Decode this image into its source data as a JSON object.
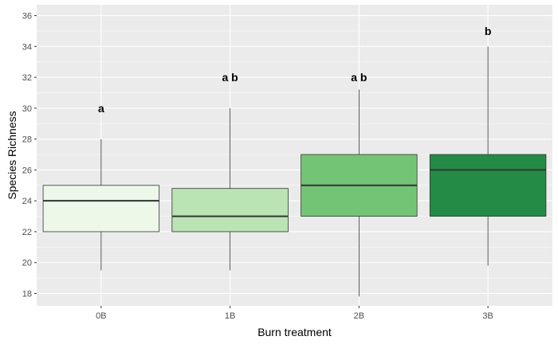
{
  "chart_data": {
    "type": "boxplot",
    "xlabel": "Burn treatment",
    "ylabel": "Species Richness",
    "categories": [
      "0B",
      "1B",
      "2B",
      "3B"
    ],
    "ylim": [
      17.2,
      36.7
    ],
    "yticks": [
      18,
      20,
      22,
      24,
      26,
      28,
      30,
      32,
      34,
      36
    ],
    "grid": true,
    "legend": "none",
    "boxes": [
      {
        "category": "0B",
        "min": 19.5,
        "q1": 22,
        "median": 24,
        "q3": 25,
        "max": 28,
        "fill": "#edf8e9",
        "label": "a"
      },
      {
        "category": "1B",
        "min": 19.5,
        "q1": 22,
        "median": 23,
        "q3": 24.8,
        "max": 30,
        "fill": "#bae4b3",
        "label": "a b"
      },
      {
        "category": "2B",
        "min": 17.8,
        "q1": 23,
        "median": 25,
        "q3": 27,
        "max": 31.2,
        "fill": "#74c476",
        "label": "a b"
      },
      {
        "category": "3B",
        "min": 19.8,
        "q1": 23,
        "median": 26,
        "q3": 27,
        "max": 34,
        "fill": "#238b45",
        "label": "b"
      }
    ],
    "label_y": [
      30,
      32,
      32,
      35
    ]
  }
}
